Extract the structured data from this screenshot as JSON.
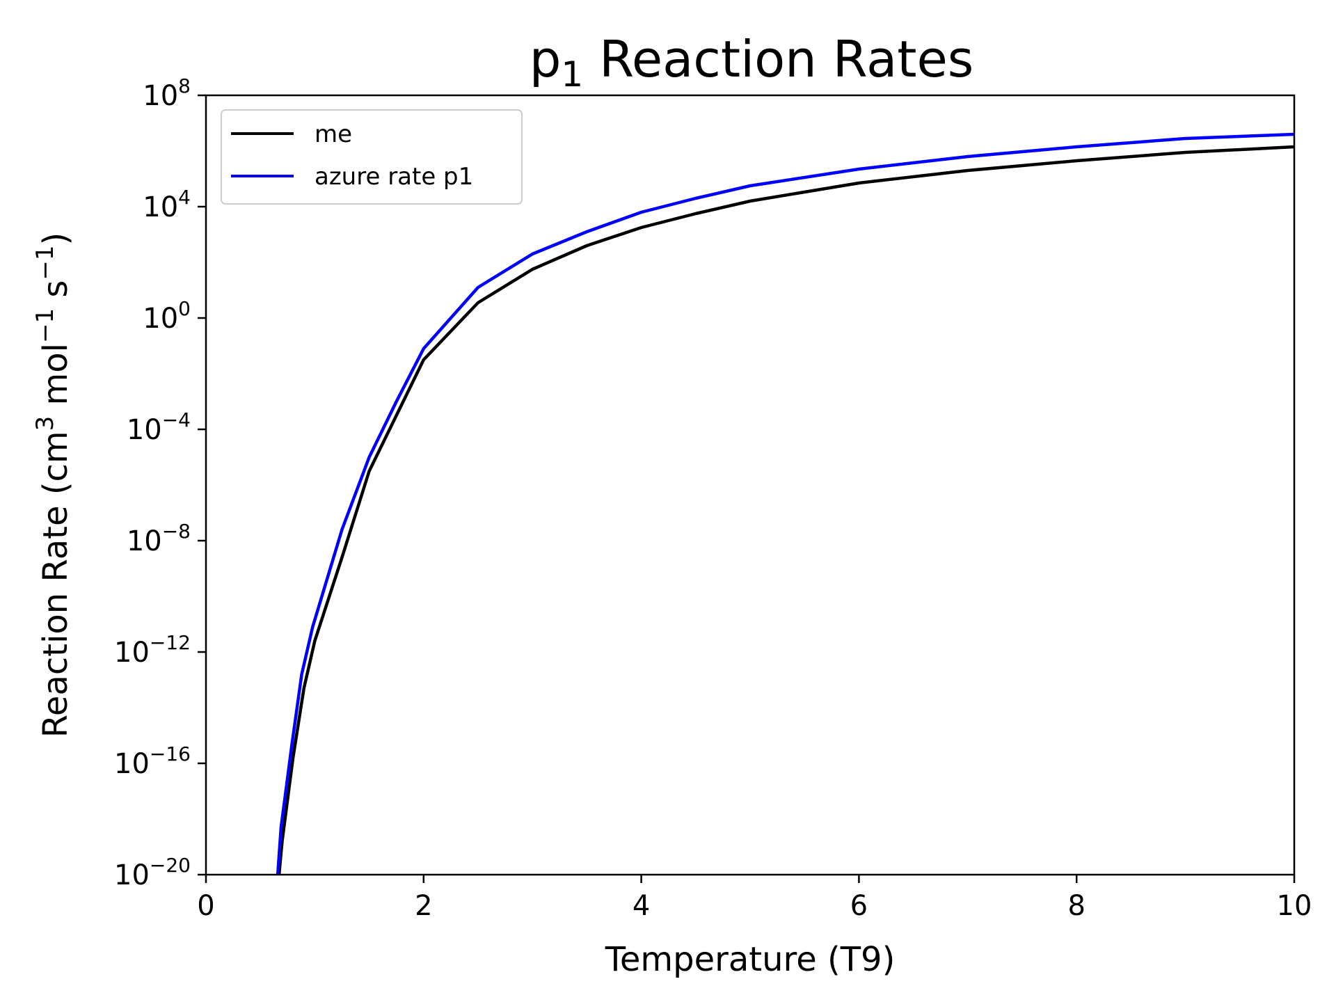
{
  "chart_data": {
    "type": "line",
    "title": {
      "prefix": "p",
      "subscript": "1",
      "suffix": " Reaction Rates"
    },
    "xlabel": "Temperature (T9)",
    "ylabel": {
      "part1": "Reaction Rate (cm",
      "sup1": "3",
      "part2": " mol",
      "sup2": "−1",
      "part3": " s",
      "sup3": "−1",
      "part4": ")"
    },
    "xlim": [
      0,
      10
    ],
    "ylim_log10": [
      -20,
      8
    ],
    "y_scale": "log",
    "grid": false,
    "legend_position": "top-left",
    "x_ticks": [
      {
        "value": 0,
        "label": "0"
      },
      {
        "value": 2,
        "label": "2"
      },
      {
        "value": 4,
        "label": "4"
      },
      {
        "value": 6,
        "label": "6"
      },
      {
        "value": 8,
        "label": "8"
      },
      {
        "value": 10,
        "label": "10"
      }
    ],
    "y_ticks": [
      {
        "exp": 8,
        "base": "10",
        "sup": "8"
      },
      {
        "exp": 4,
        "base": "10",
        "sup": "4"
      },
      {
        "exp": 0,
        "base": "10",
        "sup": "0"
      },
      {
        "exp": -4,
        "base": "10",
        "sup": "−4"
      },
      {
        "exp": -8,
        "base": "10",
        "sup": "−8"
      },
      {
        "exp": -12,
        "base": "10",
        "sup": "−12"
      },
      {
        "exp": -16,
        "base": "10",
        "sup": "−16"
      },
      {
        "exp": -20,
        "base": "10",
        "sup": "−20"
      }
    ],
    "series": [
      {
        "name": "me",
        "color": "#000000",
        "x": [
          0.66,
          0.7,
          0.8,
          0.9,
          1.0,
          1.25,
          1.5,
          1.75,
          2.0,
          2.5,
          3.0,
          3.5,
          4.0,
          4.5,
          5.0,
          6.0,
          7.0,
          8.0,
          9.0,
          10.0
        ],
        "log10_y": [
          -20.5,
          -18.8,
          -15.8,
          -13.3,
          -11.6,
          -8.6,
          -5.5,
          -3.5,
          -1.5,
          0.55,
          1.75,
          2.6,
          3.25,
          3.75,
          4.2,
          4.85,
          5.3,
          5.65,
          5.95,
          6.15
        ]
      },
      {
        "name": "azure rate p1",
        "color": "#0000ff",
        "x": [
          0.65,
          0.69,
          0.79,
          0.88,
          0.98,
          1.25,
          1.5,
          1.75,
          2.0,
          2.5,
          3.0,
          3.5,
          4.0,
          4.5,
          5.0,
          6.0,
          7.0,
          8.0,
          9.0,
          10.0
        ],
        "log10_y": [
          -20.5,
          -18.3,
          -15.3,
          -12.8,
          -11.1,
          -7.6,
          -5.0,
          -3.0,
          -1.1,
          1.1,
          2.3,
          3.1,
          3.8,
          4.3,
          4.75,
          5.35,
          5.8,
          6.15,
          6.45,
          6.6
        ]
      }
    ]
  }
}
